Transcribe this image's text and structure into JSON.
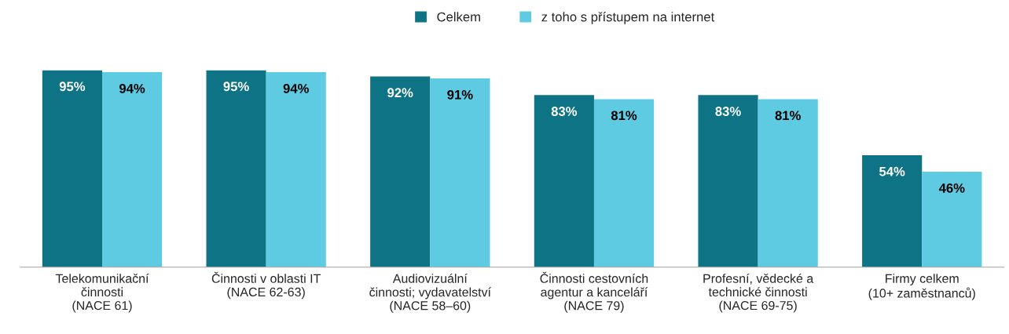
{
  "chart_data": {
    "type": "bar",
    "categories": [
      "Telekomunikační\nčinnosti\n(NACE 61)",
      "Činnosti v oblasti IT\n(NACE 62-63)",
      "Audiovizuální\nčinnosti; vydavatelství\n(NACE 58–60)",
      "Činnosti cestovních\nagentur a kanceláří\n(NACE 79)",
      "Profesní, vědecké a\ntechnické činnosti\n(NACE 69-75)",
      "Firmy celkem\n(10+ zaměstnanců)"
    ],
    "series": [
      {
        "name": "Celkem",
        "color": "#0e7384",
        "values": [
          95,
          95,
          92,
          83,
          83,
          54
        ],
        "value_labels": [
          "95%",
          "95%",
          "92%",
          "83%",
          "83%",
          "54%"
        ]
      },
      {
        "name": "z toho s přístupem na internet",
        "color": "#5ecbe3",
        "values": [
          94,
          94,
          91,
          81,
          81,
          46
        ],
        "value_labels": [
          "94%",
          "94%",
          "91%",
          "81%",
          "81%",
          "46%"
        ]
      }
    ],
    "legend": "top",
    "grid": false
  }
}
